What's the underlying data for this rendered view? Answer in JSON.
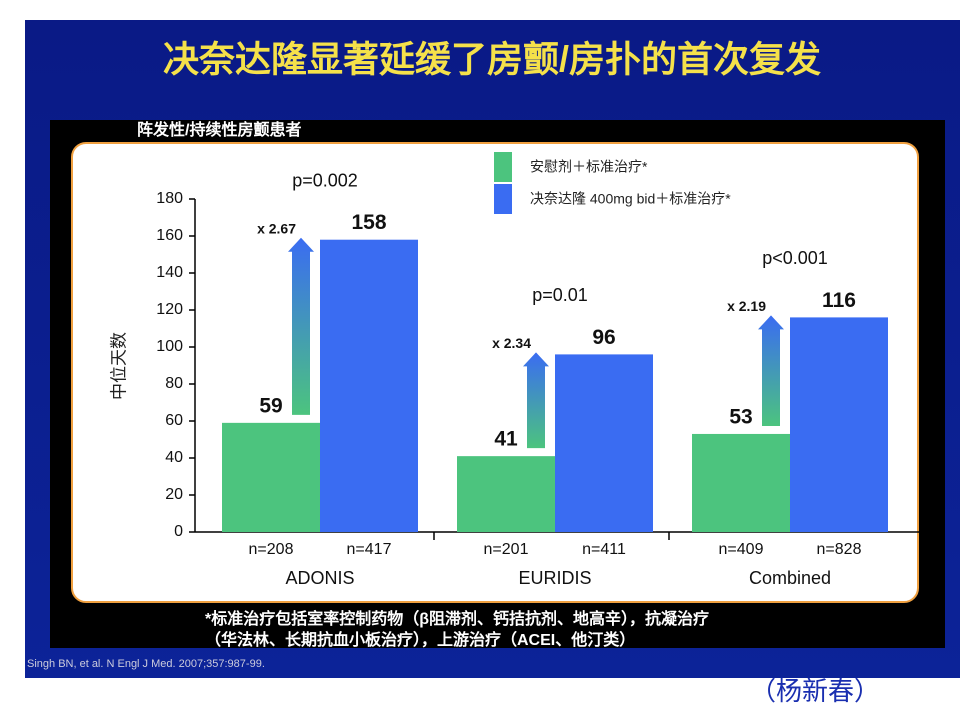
{
  "header": {
    "title": "决奈达隆显著延缓了房颤/房扑的首次复发",
    "subtitle": "阵发性/持续性房颤患者"
  },
  "chart_data": {
    "type": "bar",
    "y_label": "中位天数",
    "categories": [
      "ADONIS",
      "EURIDIS",
      "Combined"
    ],
    "series": [
      {
        "name": "安慰剂＋标准治疗*",
        "color": "#4cc47e",
        "values": [
          59,
          41,
          53
        ],
        "n_labels": [
          "n=208",
          "n=201",
          "n=409"
        ]
      },
      {
        "name": "决奈达隆 400mg bid＋标准治疗*",
        "color": "#3a6cf2",
        "values": [
          158,
          96,
          116
        ],
        "n_labels": [
          "n=417",
          "n=411",
          "n=828"
        ]
      }
    ],
    "fold_changes": [
      "x 2.67",
      "x 2.34",
      "x 2.19"
    ],
    "p_values": [
      "p=0.002",
      "p=0.01",
      "p<0.001"
    ],
    "ylim": [
      0,
      180
    ],
    "yticks": [
      0,
      20,
      40,
      60,
      80,
      100,
      120,
      140,
      160,
      180
    ]
  },
  "footnote": [
    "*标准治疗包括室率控制药物（β阻滞剂、钙拮抗剂、地高辛），抗凝治疗",
    "（华法林、长期抗血小板治疗），上游治疗（ACEI、他汀类）"
  ],
  "citation": "Singh BN, et al. N Engl J Med. 2007;357:987-99.",
  "author": "（杨新春）"
}
